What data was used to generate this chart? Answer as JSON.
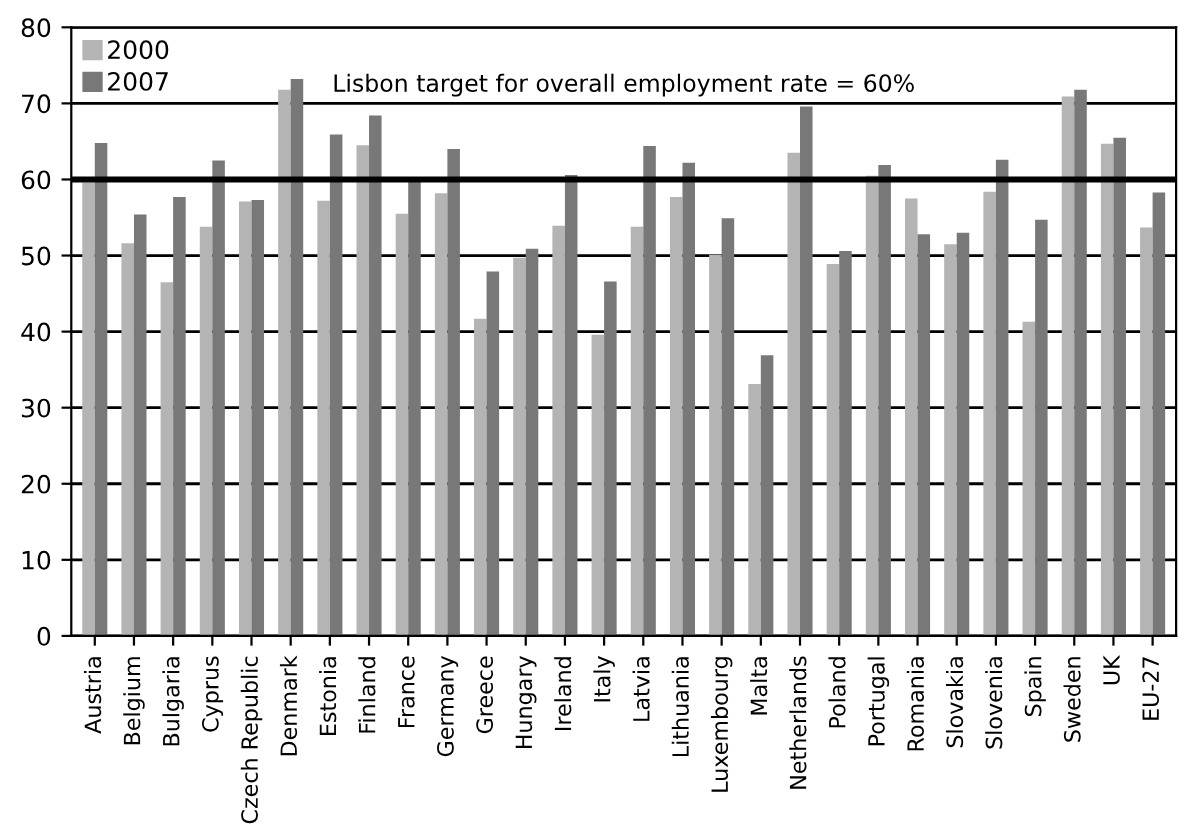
{
  "chart_data": {
    "type": "bar",
    "categories": [
      "Austria",
      "Belgium",
      "Bulgaria",
      "Cyprus",
      "Czech Republic",
      "Denmark",
      "Estonia",
      "Finland",
      "France",
      "Germany",
      "Greece",
      "Hungary",
      "Ireland",
      "Italy",
      "Latvia",
      "Lithuania",
      "Luxembourg",
      "Malta",
      "Netherlands",
      "Poland",
      "Portugal",
      "Romania",
      "Slovakia",
      "Slovenia",
      "Spain",
      "Sweden",
      "UK",
      "EU-27"
    ],
    "series": [
      {
        "name": "2000",
        "color": "#b4b4b4",
        "values": [
          59.6,
          51.6,
          46.5,
          53.8,
          57.1,
          71.8,
          57.2,
          64.5,
          55.5,
          58.2,
          41.7,
          49.7,
          53.9,
          39.6,
          53.8,
          57.7,
          50.1,
          33.1,
          63.5,
          48.9,
          60.5,
          57.5,
          51.5,
          58.4,
          41.3,
          70.9,
          64.7,
          53.7
        ]
      },
      {
        "name": "2007",
        "color": "#787878",
        "values": [
          64.8,
          55.4,
          57.7,
          62.5,
          57.3,
          73.2,
          65.9,
          68.4,
          60.0,
          64.0,
          47.9,
          50.9,
          60.6,
          46.6,
          64.4,
          62.2,
          54.9,
          36.9,
          69.6,
          50.6,
          61.9,
          52.8,
          53.0,
          62.6,
          54.7,
          71.8,
          65.5,
          58.3
        ]
      }
    ],
    "ylim": [
      0,
      80
    ],
    "yticks": [
      0,
      10,
      20,
      30,
      40,
      50,
      60,
      70,
      80
    ],
    "grid": "y",
    "legend": "top left",
    "ref_lines": [
      {
        "axis": "y",
        "value": 60,
        "color": "#000000"
      }
    ],
    "annotations": [
      "Lisbon target for overall employment rate = 60%"
    ]
  }
}
